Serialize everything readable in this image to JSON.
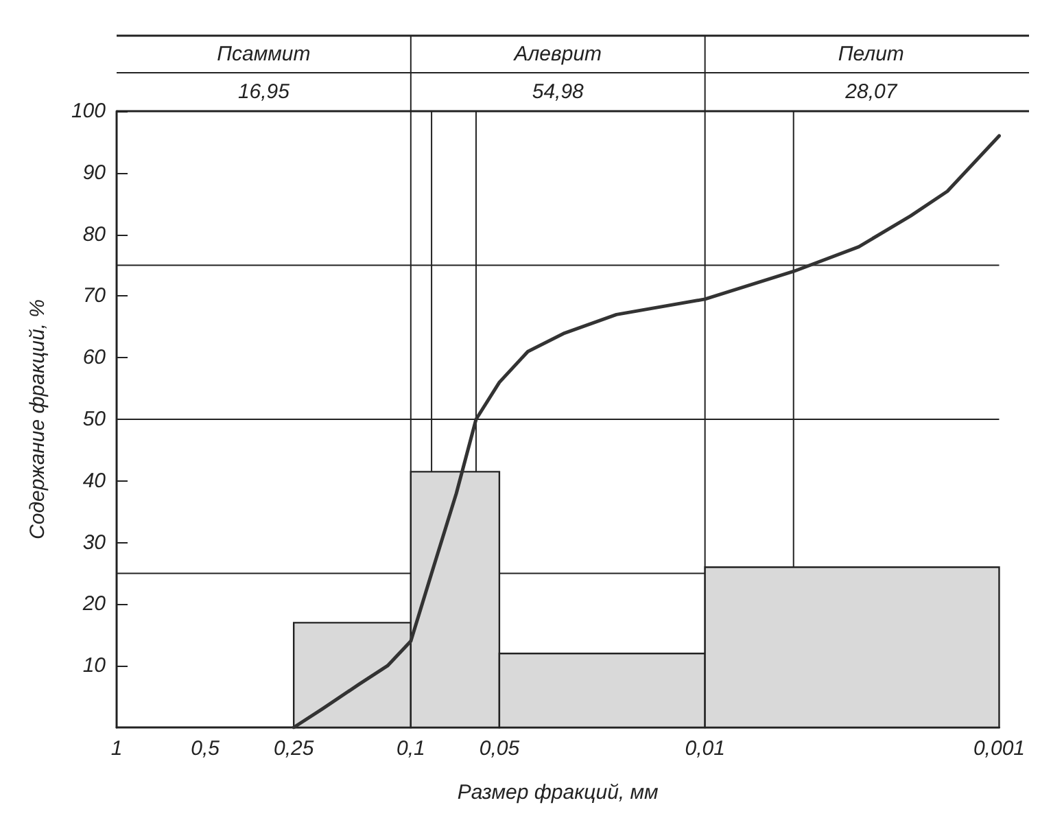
{
  "chart_data": {
    "type": "histogram",
    "xlabel": "Размер фракций, мм",
    "ylabel": "Содержание фракций, %",
    "annotations": [
      "Псаммит",
      "16,95",
      "Алеврит",
      "54,98",
      "Пелит",
      "28,07"
    ],
    "series": [
      {
        "color": "#d9d9d9",
        "bins": [
          0.25,
          0.1,
          0.05,
          0.01,
          0.001
        ],
        "values": [
          17,
          41.5,
          12,
          26
        ]
      },
      {
        "type": "line",
        "color": "#333333",
        "x": [
          0.25,
          0.2,
          0.15,
          0.12,
          0.1,
          0.085,
          0.07,
          0.06,
          0.05,
          0.04,
          0.03,
          0.02,
          0.01,
          0.005,
          0.003,
          0.002,
          0.0015,
          0.001
        ],
        "values": [
          0,
          3,
          7,
          10,
          14,
          25,
          38,
          50,
          56,
          61,
          64,
          67,
          69.5,
          74,
          78,
          83,
          87,
          96
        ]
      }
    ],
    "log": "x",
    "xlim": [
      1,
      0.001
    ],
    "xticks": [
      1,
      {
        "value": 0.5,
        "label": "0,5"
      },
      {
        "value": 0.25,
        "label": "0,25"
      },
      {
        "value": 0.1,
        "label": "0,1"
      },
      {
        "value": 0.05,
        "label": "0,05"
      },
      {
        "value": 0.01,
        "label": "0,01"
      },
      {
        "value": 0.001,
        "label": "0,001"
      }
    ],
    "ylim": [
      0,
      100
    ],
    "yticks": [
      10,
      20,
      30,
      40,
      50,
      60,
      70,
      80,
      90,
      100
    ],
    "ref_lines": [
      {
        "axis": "y",
        "value": 25
      },
      {
        "axis": "y",
        "value": 50
      },
      {
        "axis": "y",
        "value": 75
      },
      {
        "axis": "x",
        "value": 0.1
      },
      {
        "axis": "x",
        "value": 0.085
      },
      {
        "axis": "x",
        "value": 0.06
      },
      {
        "axis": "x",
        "value": 0.01
      },
      {
        "axis": "x",
        "value": 0.005
      }
    ],
    "grid": false,
    "marker": "none",
    "line_style": "solid"
  }
}
